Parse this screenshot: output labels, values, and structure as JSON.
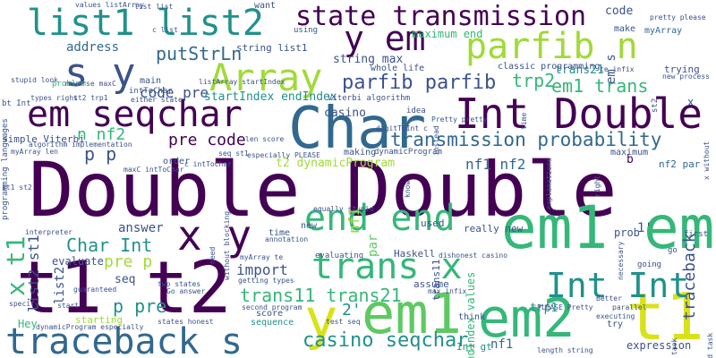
{
  "colors": {
    "dark_purple": "#440154",
    "indigo": "#3b528b",
    "slate_blue": "#31688e",
    "teal": "#21918c",
    "green": "#35b779",
    "light_green": "#5ec962",
    "yellow_green": "#a0da39",
    "yellow": "#d8e219"
  },
  "words": {
    "double_double": "Double Double",
    "t1_t2": "t1 t2",
    "traceback_s": "traceback s",
    "char": "Char",
    "int_double": "Int Double",
    "em1_em2": "em1 em2",
    "em1_mid": "em1",
    "em2_low": "em2",
    "t1_right": "t1",
    "y_low": "y",
    "x_y": "x y",
    "em_seqchar": "em seqchar",
    "array": "Array",
    "state_transmission": "state transmission",
    "list1_list2": "list1 list2",
    "y_em": "y em",
    "parfib_n": "parfib n",
    "s_y": "s y",
    "end_end": "end end",
    "trans_x": "trans x",
    "int_int": "Int Int",
    "transmission_probability": "transmission probability",
    "parfib_parfib": "parfib parfib",
    "em1_trans": "em1 trans",
    "trp2": "trp2",
    "casino_seqchar": "casino seqchar",
    "trans11_trans21": "trans11 trans21",
    "char_int": "Char Int",
    "p_pre": "p pre",
    "pre_p": "pre p",
    "two_prime": "2'",
    "p_p": "p p",
    "code_pre": "code pre",
    "putstrln": "putStrLn",
    "address": "address",
    "n_nf2": "n nf2",
    "pre_code": "pre code",
    "string_list1": "string list1",
    "string_max": "string max",
    "startindex_endindex": "startIndex endIndex",
    "nf1_nf2": "nf1 nf2",
    "t2_dynamicprogram": "t2 dynamicProgram",
    "trans21": "trans21",
    "import": "import",
    "answer": "answer",
    "evaluate": "evaluate",
    "seq": "seq",
    "score": "score",
    "sequence": "sequence",
    "code": "code",
    "x_tr": "x",
    "maximum_end": "maximum end",
    "make": "make",
    "myarray": "myArray",
    "want": "want",
    "main": "main",
    "inttochar": "intToChar",
    "problem": "problem",
    "casino": "casino",
    "viterbi_algorithm": "Viterbi algorithm",
    "classic_programming": "classic programming",
    "whole_life": "whole life",
    "trying": "trying",
    "order": "order",
    "making": "making",
    "maximum": "maximum",
    "nf2_par": "nf2 par",
    "b": "b",
    "simple_viterbi": "simple Viterbi",
    "used": "used",
    "really_new": "really new",
    "new": "new",
    "time": "time",
    "haskell": "Haskell",
    "evaluating": "evaluating",
    "assume": "assume",
    "first": "first",
    "one_prime": "1'",
    "trp1": "trp1",
    "prob": "prob",
    "go": "go",
    "going": "going",
    "expression": "expression",
    "hey": "Hey",
    "starting": "starting",
    "int_gt": "Int gt",
    "nf1_low": "nf1",
    "try": "try",
    "think": "think",
    "idea": "idea",
    "list_list": "list list",
    "pretty_please": "pretty please",
    "values_listarray": "values listArray",
    "using": "using",
    "stupid_look": "stupid look",
    "types_right": "types right",
    "st2_trp1": "st2 trp1",
    "either_state": "either state",
    "viterbi_pretty": "Pretty pretty",
    "new_process": "new process",
    "te_infix": "te infix",
    "seq_st1": "seq st1",
    "especially_please": "especially PLEASE",
    "c_inttochar": "c intToChar",
    "maxc_inttochar": "maxC intToChar",
    "equally_stupid": "equally stupid",
    "dishonest_casino": "dishonest casino",
    "annotation": "annotation",
    "go_answer": "Go answer",
    "second_program": "second program",
    "test_seq": "test seq",
    "states_honest": "states honest",
    "dynamicprogram_especially": "dynamicProgram especially",
    "length_string": "length string",
    "please_pretty": "PLEASE Pretty",
    "executing": "executing",
    "parallel": "parallel",
    "better": "Better",
    "max_infix": "max infix",
    "two_states": "two states",
    "getting_types": "getting types",
    "myarray_te": "myArray te",
    "listarray_startindex": "listArray startIndex",
    "len_score": "len score",
    "digittoint_c": "digitToInt c",
    "algorithm_implementation": "algorithm implementation",
    "reverse_maxc": "reverse maxC",
    "myarray_len": "myArray len",
    "dynamicprogram": "dynamicProgram",
    "interpreter": "interpreter",
    "guaranteed": "guaranteed",
    "specify": "specify",
    "start": "start",
    "bt_int": "bt Int",
    "c_list": "c list",
    "programming_languages": "programming languages",
    "st1_st2": "st1 st2",
    "v_list2_st1": "list2 st1",
    "v_list2": "list2",
    "v_x_t1": "x t1",
    "v_nf1": "nf1",
    "v_par": "par",
    "v_traceback": "traceback",
    "v_endindex_values": "endIndex values",
    "v_trans11": "trans11",
    "v_em_s": "em s",
    "v_time": "time",
    "v_right": "right",
    "v_know": "know",
    "v_explanations": "explanations",
    "v_necessary": "necessary",
    "v_need": "need",
    "v_st2": "st2",
    "v_task": "task",
    "v_could_task": "could task",
    "v_without_blocking": "without blocking",
    "v_instead": "instead",
    "v_x_without": "x without"
  }
}
